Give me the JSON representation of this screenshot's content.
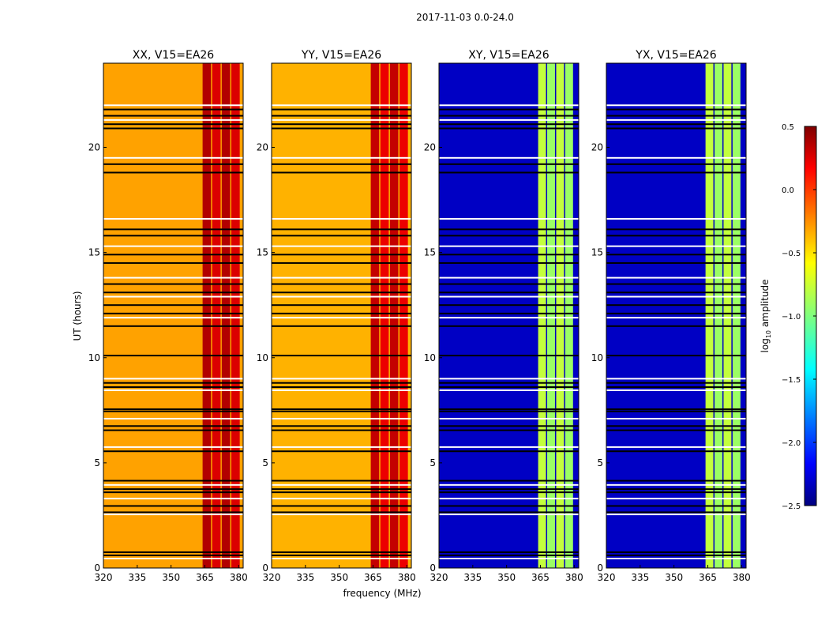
{
  "figure": {
    "suptitle": "2017-11-03 0.0-24.0",
    "ylabel": "UT (hours)",
    "xlabel": "frequency (MHz)"
  },
  "chart_data": [
    {
      "type": "heatmap",
      "title": "XX, V15=EA26",
      "xlabel": "frequency (MHz)",
      "ylabel": "UT (hours)",
      "xlim": [
        320,
        382
      ],
      "ylim": [
        0,
        24
      ],
      "xticks": [
        "320",
        "335",
        "350",
        "365",
        "380"
      ],
      "yticks": [
        "0",
        "5",
        "10",
        "15",
        "20"
      ],
      "quantity": "log10 amplitude",
      "base_log_amplitude": -0.35,
      "strong_band_mhz": [
        364,
        381
      ],
      "strong_band_log_amplitude": 0.35
    },
    {
      "type": "heatmap",
      "title": "YY, V15=EA26",
      "xlabel": "frequency (MHz)",
      "ylabel": "UT (hours)",
      "xlim": [
        320,
        382
      ],
      "ylim": [
        0,
        24
      ],
      "xticks": [
        "320",
        "335",
        "350",
        "365",
        "380"
      ],
      "yticks": [
        "0",
        "5",
        "10",
        "15",
        "20"
      ],
      "quantity": "log10 amplitude",
      "base_log_amplitude": -0.4,
      "strong_band_mhz": [
        364,
        381
      ],
      "strong_band_log_amplitude": 0.3
    },
    {
      "type": "heatmap",
      "title": "XY, V15=EA26",
      "xlabel": "frequency (MHz)",
      "ylabel": "UT (hours)",
      "xlim": [
        320,
        382
      ],
      "ylim": [
        0,
        24
      ],
      "xticks": [
        "320",
        "335",
        "350",
        "365",
        "380"
      ],
      "yticks": [
        "0",
        "5",
        "10",
        "15",
        "20"
      ],
      "quantity": "log10 amplitude",
      "base_log_amplitude": -2.3,
      "strong_band_mhz": [
        364,
        380
      ],
      "strong_band_log_amplitude": -0.8
    },
    {
      "type": "heatmap",
      "title": "YX, V15=EA26",
      "xlabel": "frequency (MHz)",
      "ylabel": "UT (hours)",
      "xlim": [
        320,
        382
      ],
      "ylim": [
        0,
        24
      ],
      "xticks": [
        "320",
        "335",
        "350",
        "365",
        "380"
      ],
      "yticks": [
        "0",
        "5",
        "10",
        "15",
        "20"
      ],
      "quantity": "log10 amplitude",
      "base_log_amplitude": -2.3,
      "strong_band_mhz": [
        364,
        380
      ],
      "strong_band_log_amplitude": -0.8
    }
  ],
  "colorbar": {
    "label_prefix": "log",
    "label_sub": "10",
    "label_suffix": " amplitude",
    "vmin": -2.5,
    "vmax": 0.5,
    "ticks": [
      "0.5",
      "0.0",
      "−0.5",
      "−1.0",
      "−1.5",
      "−2.0",
      "−2.5"
    ],
    "tick_values": [
      0.5,
      0.0,
      -0.5,
      -1.0,
      -1.5,
      -2.0,
      -2.5
    ],
    "colormap": "jet"
  },
  "flagged_hours": [
    0.45,
    0.6,
    0.75,
    2.55,
    2.65,
    2.95,
    3.3,
    3.6,
    3.75,
    3.95,
    4.15,
    5.55,
    5.75,
    6.55,
    6.75,
    7.1,
    7.45,
    7.55,
    8.45,
    8.6,
    8.8,
    9.0,
    10.1,
    11.5,
    11.9,
    12.1,
    12.5,
    12.9,
    13.1,
    13.5,
    13.8,
    14.5,
    14.9,
    15.3,
    15.8,
    16.1,
    16.6,
    18.8,
    19.2,
    19.5,
    20.9,
    21.1,
    21.3,
    21.5,
    21.8,
    22.0
  ]
}
